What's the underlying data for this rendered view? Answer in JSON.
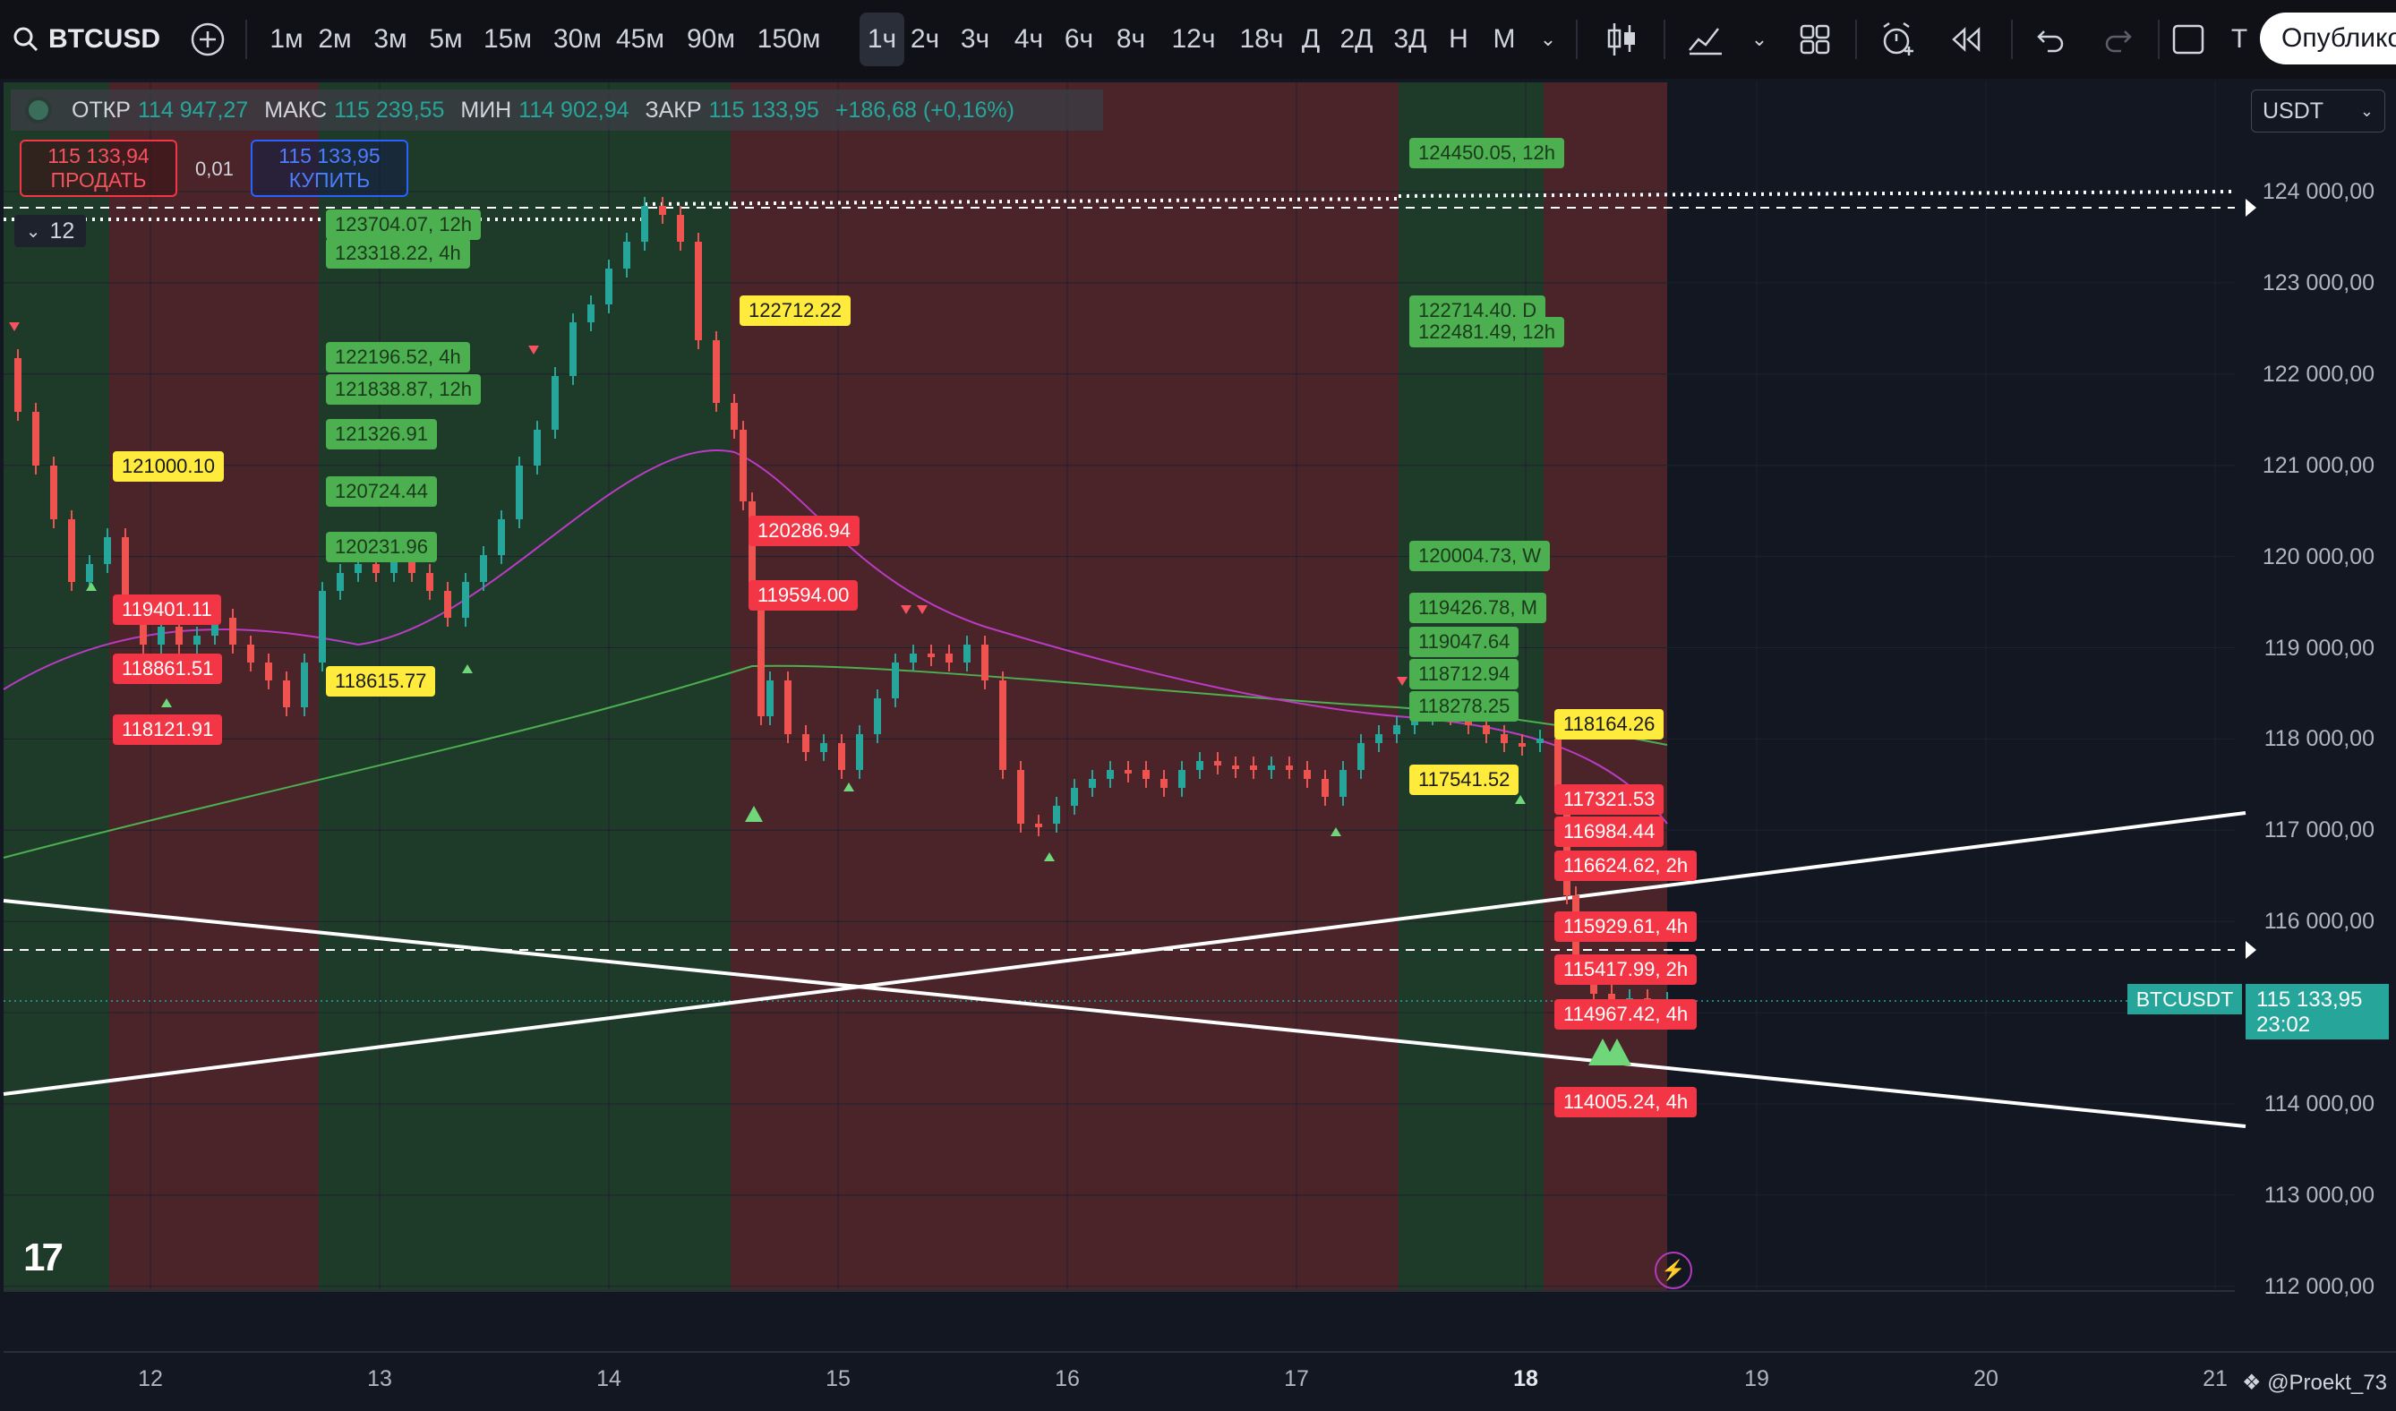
{
  "toolbar": {
    "symbol": "BTCUSD",
    "timeframes": [
      "1м",
      "2м",
      "3м",
      "5м",
      "15м",
      "30м",
      "45м",
      "90м",
      "150м",
      "1ч",
      "2ч",
      "3ч",
      "4ч",
      "6ч",
      "8ч",
      "12ч",
      "18ч",
      "Д",
      "2Д",
      "3Д",
      "Н",
      "М"
    ],
    "active_timeframe": "1ч",
    "partial_label": "Т",
    "publish_label": "Опублико"
  },
  "legend": {
    "open_label": "ОТКР",
    "open": "114 947,27",
    "high_label": "МАКС",
    "high": "115 239,55",
    "low_label": "МИН",
    "low": "114 902,94",
    "close_label": "ЗАКР",
    "close": "115 133,95",
    "change": "+186,68 (+0,16%)"
  },
  "trade": {
    "sell_price": "115 133,94",
    "sell_label": "ПРОДАТЬ",
    "quantity": "0,01",
    "buy_price": "115 133,95",
    "buy_label": "КУПИТЬ"
  },
  "indicator_count": "12",
  "currency": "USDT",
  "current_price": {
    "symbol": "BTCUSDT",
    "price": "115 133,95",
    "countdown": "23:02"
  },
  "price_axis": [
    "124 000,00",
    "123 000,00",
    "122 000,00",
    "121 000,00",
    "120 000,00",
    "119 000,00",
    "118 000,00",
    "117 000,00",
    "116 000,00",
    "115 000,00",
    "114 000,00",
    "113 000,00",
    "112 000,00"
  ],
  "time_axis": [
    "12",
    "13",
    "14",
    "15",
    "16",
    "17",
    "18",
    "19",
    "20",
    "21"
  ],
  "bold_time": "18",
  "labels": [
    {
      "text": "123704.07, 12h",
      "c": "g"
    },
    {
      "text": "123318.22, 4h",
      "c": "g"
    },
    {
      "text": "122196.52, 4h",
      "c": "g"
    },
    {
      "text": "121838.87, 12h",
      "c": "g"
    },
    {
      "text": "121326.91",
      "c": "g"
    },
    {
      "text": "120724.44",
      "c": "g"
    },
    {
      "text": "120231.96",
      "c": "g"
    },
    {
      "text": "121000.10",
      "c": "y"
    },
    {
      "text": "119401.11",
      "c": "r"
    },
    {
      "text": "118861.51",
      "c": "r"
    },
    {
      "text": "118121.91",
      "c": "r"
    },
    {
      "text": "118615.77",
      "c": "y"
    },
    {
      "text": "122712.22",
      "c": "y"
    },
    {
      "text": "120286.94",
      "c": "r"
    },
    {
      "text": "119594.00",
      "c": "r"
    },
    {
      "text": "124450.05, 12h",
      "c": "g"
    },
    {
      "text": "122714.40, D",
      "c": "g"
    },
    {
      "text": "122481.49, 12h",
      "c": "g"
    },
    {
      "text": "120004.73, W",
      "c": "g"
    },
    {
      "text": "119426.78, M",
      "c": "g"
    },
    {
      "text": "119047.64",
      "c": "g"
    },
    {
      "text": "118712.94",
      "c": "g"
    },
    {
      "text": "118278.25",
      "c": "g"
    },
    {
      "text": "117541.52",
      "c": "y"
    },
    {
      "text": "118164.26",
      "c": "y"
    },
    {
      "text": "117321.53",
      "c": "r"
    },
    {
      "text": "116984.44",
      "c": "r"
    },
    {
      "text": "116624.62, 2h",
      "c": "r"
    },
    {
      "text": "115929.61, 4h",
      "c": "r"
    },
    {
      "text": "115417.99, 2h",
      "c": "r"
    },
    {
      "text": "114967.42, 4h",
      "c": "r"
    },
    {
      "text": "114005.24, 4h",
      "c": "r"
    }
  ],
  "user": "@Proekt_73",
  "colors": {
    "up": "#26a69a",
    "down": "#ef5350",
    "bg": "#0f1117",
    "green_zone": "#1f3a2b",
    "red_zone": "#4a2429"
  }
}
